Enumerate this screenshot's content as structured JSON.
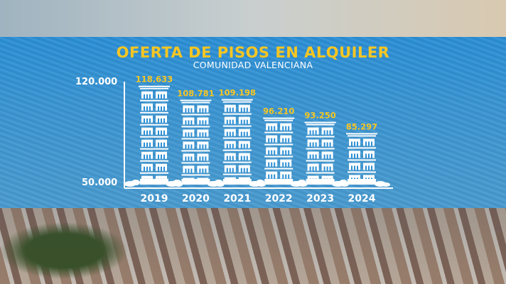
{
  "chart_data": {
    "type": "bar",
    "title": "OFERTA DE PISOS EN ALQUILER",
    "subtitle": "COMUNIDAD VALENCIANA",
    "categories": [
      "2019",
      "2020",
      "2021",
      "2022",
      "2023",
      "2024"
    ],
    "values": [
      118633,
      108781,
      109198,
      96210,
      93250,
      85297
    ],
    "value_labels": [
      "118.633",
      "108.781",
      "109.198",
      "96.210",
      "93.250",
      "85.297"
    ],
    "ylim": [
      50000,
      120000
    ],
    "yticks": [
      "120.000",
      "50.000"
    ],
    "grid": false,
    "colors": {
      "panel": "#2b8fd6",
      "label": "#f6c623",
      "bars": "#ffffff"
    }
  }
}
